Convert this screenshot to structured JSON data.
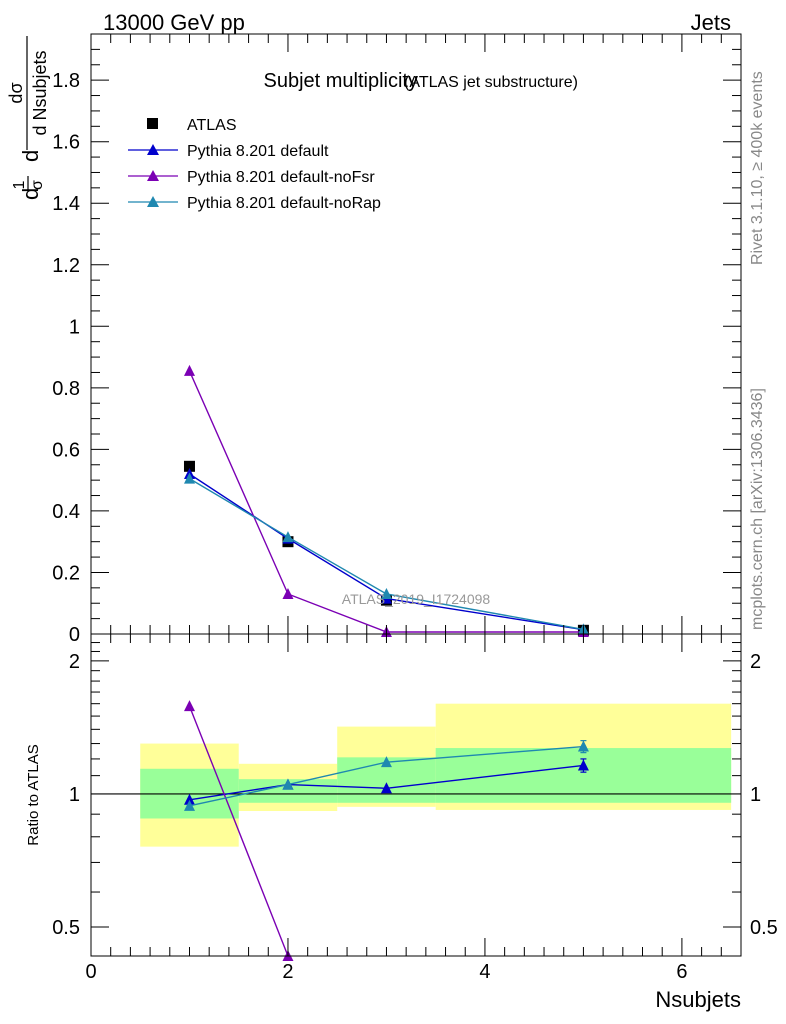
{
  "header": {
    "left": "13000 GeV pp",
    "right": "Jets"
  },
  "side_labels": {
    "right_top": "Rivet 3.1.10, ≥ 400k events",
    "right_bottom": "mcplots.cern.ch [arXiv:1306.3436]"
  },
  "chart_data": [
    {
      "type": "scatter",
      "panel": "main",
      "title": "Subjet multiplicity",
      "subtitle": "(ATLAS jet substructure)",
      "watermark": "ATLAS_2019_I1724098",
      "ylabel": {
        "top_frac_num": "1",
        "top_frac_den": "σ",
        "prefix": "d",
        "frac_num": "dσ",
        "frac_den": "d Nsubjets"
      },
      "xlim": [
        0,
        6.6
      ],
      "ylim": [
        0,
        1.95
      ],
      "yticks": [
        0,
        0.2,
        0.4,
        0.6,
        0.8,
        1,
        1.2,
        1.4,
        1.6,
        1.8
      ],
      "ytick_labels": [
        "0",
        "0.2",
        "0.4",
        "0.6",
        "0.8",
        "1",
        "1.2",
        "1.4",
        "1.6",
        "1.8"
      ],
      "grid": false,
      "legend_position": "top-left",
      "series": [
        {
          "name": "ATLAS",
          "color": "#000000",
          "marker": "square",
          "line": false,
          "x": [
            1,
            2,
            3,
            5
          ],
          "y": [
            0.545,
            0.3,
            0.11,
            0.012
          ]
        },
        {
          "name": "Pythia 8.201 default",
          "color": "#0000cc",
          "marker": "triangle",
          "line": true,
          "x": [
            1,
            2,
            3,
            5
          ],
          "y": [
            0.52,
            0.31,
            0.115,
            0.014
          ]
        },
        {
          "name": "Pythia 8.201 default-noFsr",
          "color": "#7b00b4",
          "marker": "triangle",
          "line": true,
          "x": [
            1,
            2,
            3,
            5
          ],
          "y": [
            0.855,
            0.13,
            0.005,
            0.0
          ]
        },
        {
          "name": "Pythia 8.201 default-noRap",
          "color": "#1f88b0",
          "marker": "triangle",
          "line": true,
          "x": [
            1,
            2,
            3,
            5
          ],
          "y": [
            0.505,
            0.315,
            0.13,
            0.015
          ]
        }
      ]
    },
    {
      "type": "line",
      "panel": "ratio",
      "ylabel": "Ratio to ATLAS",
      "xlabel": "Nsubjets",
      "xlim": [
        0,
        6.6
      ],
      "ylim": [
        0.43,
        2.3
      ],
      "log_y": true,
      "xticks": [
        0,
        2,
        4,
        6
      ],
      "xtick_labels": [
        "0",
        "2",
        "4",
        "6"
      ],
      "yticks": [
        0.5,
        1,
        2
      ],
      "ytick_labels": [
        "0.5",
        "1",
        "2"
      ],
      "reference_line": 1,
      "bands": {
        "outer_color": "#ffff99",
        "inner_color": "#99ff99",
        "bins": [
          {
            "x0": 0.5,
            "x1": 1.5,
            "outer": [
              0.76,
              1.3
            ],
            "inner": [
              0.88,
              1.14
            ]
          },
          {
            "x0": 1.5,
            "x1": 2.5,
            "outer": [
              0.915,
              1.17
            ],
            "inner": [
              0.955,
              1.08
            ]
          },
          {
            "x0": 2.5,
            "x1": 3.5,
            "outer": [
              0.935,
              1.42
            ],
            "inner": [
              0.955,
              1.21
            ]
          },
          {
            "x0": 3.5,
            "x1": 6.5,
            "outer": [
              0.92,
              1.6
            ],
            "inner": [
              0.955,
              1.27
            ]
          }
        ]
      },
      "series": [
        {
          "name": "Pythia 8.201 default",
          "color": "#0000cc",
          "x": [
            1,
            2,
            3,
            5
          ],
          "y": [
            0.97,
            1.05,
            1.03,
            1.16
          ],
          "err": [
            0,
            0,
            0,
            0.04
          ]
        },
        {
          "name": "Pythia 8.201 default-noFsr",
          "color": "#7b00b4",
          "x": [
            1,
            2
          ],
          "y": [
            1.58,
            0.43
          ],
          "err": [
            0,
            0
          ]
        },
        {
          "name": "Pythia 8.201 default-noRap",
          "color": "#1f88b0",
          "x": [
            1,
            2,
            3,
            5
          ],
          "y": [
            0.94,
            1.05,
            1.18,
            1.28
          ],
          "err": [
            0,
            0,
            0,
            0.04
          ]
        }
      ]
    }
  ]
}
